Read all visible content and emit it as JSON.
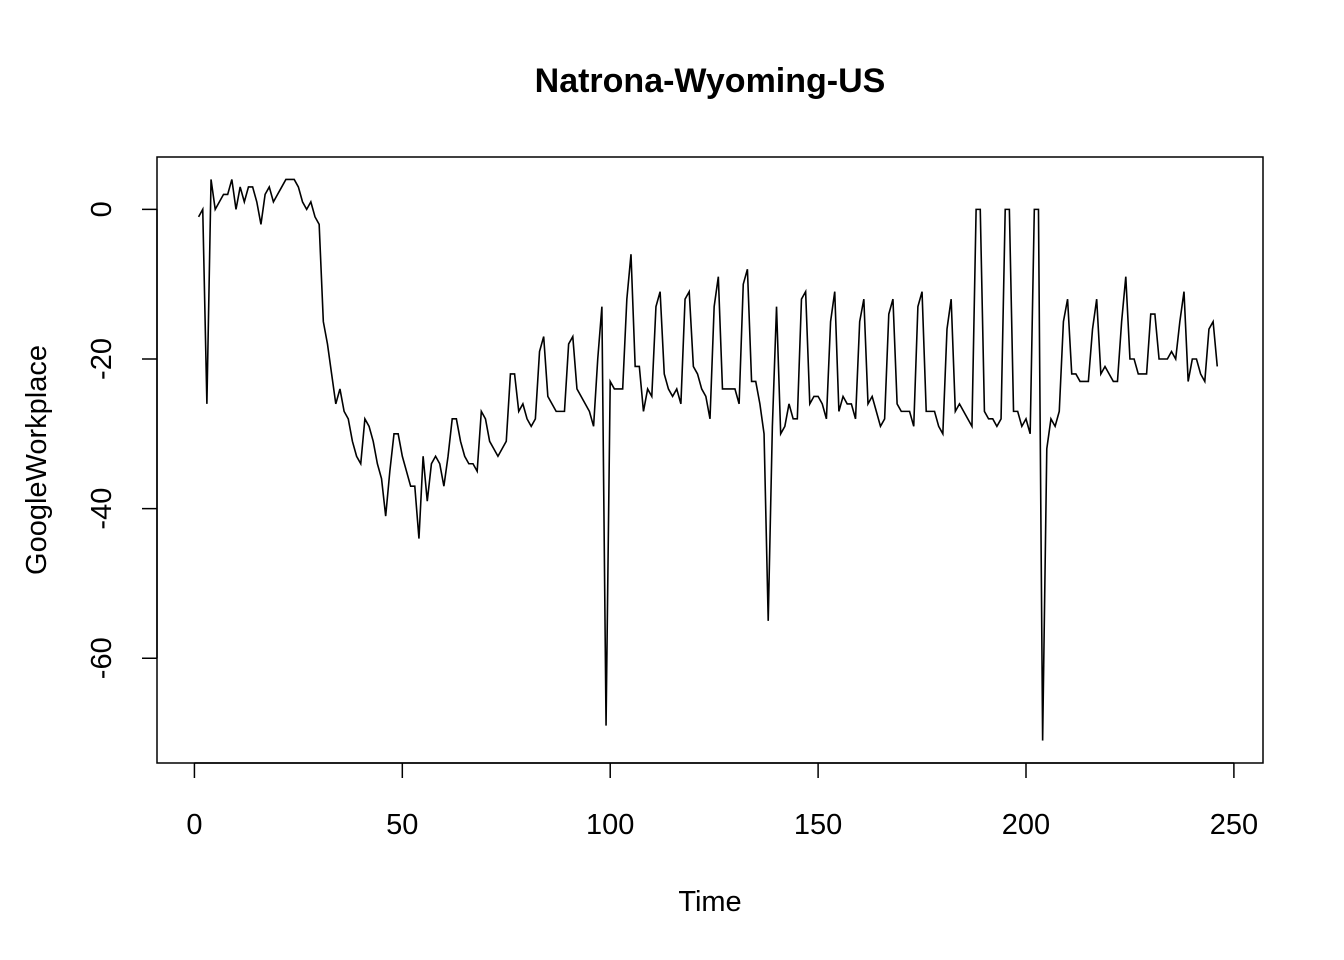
{
  "chart_data": {
    "type": "line",
    "title": "Natrona-Wyoming-US",
    "xlabel": "Time",
    "ylabel": "GoogleWorkplace",
    "xlim": [
      -9.0,
      257.0
    ],
    "ylim": [
      -74.0,
      7.0
    ],
    "x_ticks": [
      0,
      50,
      100,
      150,
      200,
      250
    ],
    "y_ticks": [
      0,
      -20,
      -40,
      -60
    ],
    "line_color": "#000000",
    "series": [
      {
        "values": [
          -1,
          0,
          -26,
          4,
          0,
          1,
          2,
          2,
          4,
          0,
          3,
          1,
          3,
          3,
          1,
          -2,
          2,
          3,
          1,
          2,
          3,
          4,
          4,
          4,
          3,
          1,
          0,
          1,
          -1,
          -2,
          -15,
          -18,
          -22,
          -26,
          -24,
          -27,
          -28,
          -31,
          -33,
          -34,
          -28,
          -29,
          -31,
          -34,
          -36,
          -41,
          -35,
          -30,
          -30,
          -33,
          -35,
          -37,
          -37,
          -44,
          -33,
          -39,
          -34,
          -33,
          -34,
          -37,
          -33,
          -28,
          -28,
          -31,
          -33,
          -34,
          -34,
          -35,
          -27,
          -28,
          -31,
          -32,
          -33,
          -32,
          -31,
          -22,
          -22,
          -27,
          -26,
          -28,
          -29,
          -28,
          -19,
          -17,
          -25,
          -26,
          -27,
          -27,
          -27,
          -18,
          -17,
          -24,
          -25,
          -26,
          -27,
          -29,
          -20,
          -13,
          -69,
          -23,
          -24,
          -24,
          -24,
          -12,
          -6,
          -21,
          -21,
          -27,
          -24,
          -25,
          -13,
          -11,
          -22,
          -24,
          -25,
          -24,
          -26,
          -12,
          -11,
          -21,
          -22,
          -24,
          -25,
          -28,
          -13,
          -9,
          -24,
          -24,
          -24,
          -24,
          -26,
          -10,
          -8,
          -23,
          -23,
          -26,
          -30,
          -55,
          -29,
          -13,
          -30,
          -29,
          -26,
          -28,
          -28,
          -12,
          -11,
          -26,
          -25,
          -25,
          -26,
          -28,
          -15,
          -11,
          -27,
          -25,
          -26,
          -26,
          -28,
          -15,
          -12,
          -26,
          -25,
          -27,
          -29,
          -28,
          -14,
          -12,
          -26,
          -27,
          -27,
          -27,
          -29,
          -13,
          -11,
          -27,
          -27,
          -27,
          -29,
          -30,
          -16,
          -12,
          -27,
          -26,
          -27,
          -28,
          -29,
          0,
          0,
          -27,
          -28,
          -28,
          -29,
          -28,
          0,
          0,
          -27,
          -27,
          -29,
          -28,
          -30,
          0,
          0,
          -71,
          -32,
          -28,
          -29,
          -27,
          -15,
          -12,
          -22,
          -22,
          -23,
          -23,
          -23,
          -16,
          -12,
          -22,
          -21,
          -22,
          -23,
          -23,
          -15,
          -9,
          -20,
          -20,
          -22,
          -22,
          -22,
          -14,
          -14,
          -20,
          -20,
          -20,
          -19,
          -20,
          -15,
          -11,
          -23,
          -20,
          -20,
          -22,
          -23,
          -16,
          -15,
          -21
        ]
      }
    ]
  }
}
